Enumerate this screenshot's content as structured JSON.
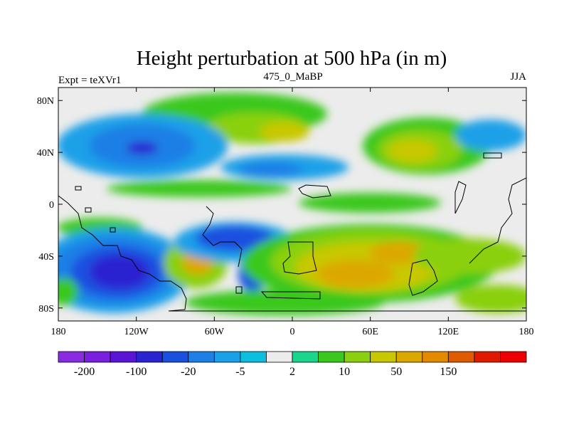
{
  "title": "Height perturbation at 500 hPa (in m)",
  "subtitle_left": "Expt = teXVr1",
  "subtitle_center": "475_0_MaBP",
  "subtitle_right": "JJA",
  "lat_ticks": [
    {
      "value": 80,
      "label": "80N"
    },
    {
      "value": 40,
      "label": "40N"
    },
    {
      "value": 0,
      "label": "0"
    },
    {
      "value": -40,
      "label": "40S"
    },
    {
      "value": -80,
      "label": "80S"
    }
  ],
  "lon_ticks": [
    {
      "value": -180,
      "label": "180"
    },
    {
      "value": -120,
      "label": "120W"
    },
    {
      "value": -60,
      "label": "60W"
    },
    {
      "value": 0,
      "label": "0"
    },
    {
      "value": 60,
      "label": "60E"
    },
    {
      "value": 120,
      "label": "120E"
    },
    {
      "value": 180,
      "label": "180"
    }
  ],
  "colorbar": {
    "colors": [
      "#8a2be2",
      "#7a1fe0",
      "#5a14d6",
      "#2a24d0",
      "#1a50e0",
      "#1e7fe6",
      "#1aa0e8",
      "#0cbfe0",
      "#ececec",
      "#1ad68a",
      "#3ac81e",
      "#8ad010",
      "#c8c800",
      "#dca800",
      "#e48a00",
      "#e05a00",
      "#e01a00",
      "#ee0000"
    ],
    "labels": [
      {
        "boundary": 1,
        "text": "-200"
      },
      {
        "boundary": 3,
        "text": "-100"
      },
      {
        "boundary": 5,
        "text": "-20"
      },
      {
        "boundary": 7,
        "text": "-5"
      },
      {
        "boundary": 9,
        "text": "2"
      },
      {
        "boundary": 11,
        "text": "10"
      },
      {
        "boundary": 13,
        "text": "50"
      },
      {
        "boundary": 15,
        "text": "150"
      }
    ]
  }
}
